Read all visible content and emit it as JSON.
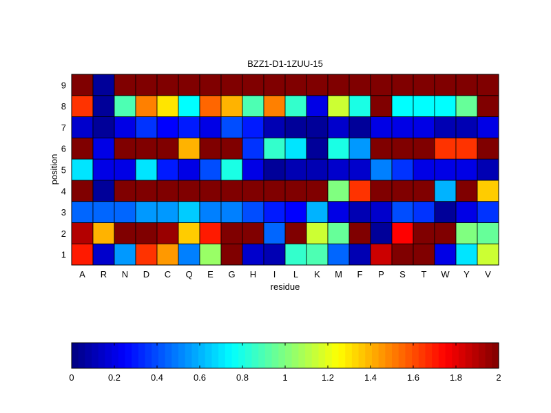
{
  "chart_data": {
    "type": "heatmap",
    "title": "BZZ1-D1-1ZUU-15",
    "xlabel": "residue",
    "ylabel": "position",
    "x_categories": [
      "A",
      "R",
      "N",
      "D",
      "C",
      "Q",
      "E",
      "G",
      "H",
      "I",
      "L",
      "K",
      "M",
      "F",
      "P",
      "S",
      "T",
      "W",
      "Y",
      "V"
    ],
    "y_categories": [
      "1",
      "2",
      "3",
      "4",
      "5",
      "6",
      "7",
      "8",
      "9"
    ],
    "values": [
      [
        1.7,
        0.15,
        0.55,
        1.65,
        1.45,
        0.5,
        1.05,
        2.0,
        0.15,
        0.1,
        0.85,
        0.9,
        0.45,
        0.1,
        1.85,
        2.0,
        2.0,
        0.2,
        0.7,
        1.15
      ],
      [
        1.9,
        1.4,
        2.0,
        2.0,
        1.95,
        1.35,
        1.7,
        2.0,
        2.0,
        0.45,
        2.0,
        1.15,
        0.95,
        2.0,
        0.05,
        1.75,
        2.0,
        2.0,
        1.0,
        0.95
      ],
      [
        0.45,
        0.45,
        0.45,
        0.55,
        0.55,
        0.65,
        0.5,
        0.5,
        0.4,
        0.3,
        0.25,
        0.6,
        0.2,
        0.1,
        0.15,
        0.4,
        0.35,
        0.05,
        0.2,
        0.35
      ],
      [
        2.0,
        0.05,
        2.0,
        2.0,
        2.0,
        2.0,
        2.0,
        2.0,
        2.0,
        2.0,
        2.0,
        2.0,
        1.0,
        1.65,
        2.0,
        2.0,
        2.0,
        0.6,
        2.0,
        1.35
      ],
      [
        0.7,
        0.2,
        0.2,
        0.7,
        0.3,
        0.2,
        0.4,
        0.8,
        0.2,
        0.05,
        0.1,
        0.1,
        0.15,
        0.15,
        0.5,
        0.35,
        0.2,
        0.2,
        0.2,
        0.1
      ],
      [
        2.0,
        0.2,
        2.0,
        2.0,
        2.0,
        1.4,
        2.0,
        2.0,
        0.35,
        0.85,
        0.7,
        0.05,
        0.8,
        0.55,
        2.0,
        2.0,
        2.0,
        1.65,
        1.65,
        2.0
      ],
      [
        0.15,
        0.05,
        0.2,
        0.35,
        0.25,
        0.3,
        0.2,
        0.4,
        0.3,
        0.1,
        0.05,
        0.05,
        0.15,
        0.05,
        0.2,
        0.2,
        0.2,
        0.1,
        0.1,
        0.2
      ],
      [
        1.65,
        0.05,
        0.9,
        1.5,
        1.3,
        0.75,
        1.55,
        1.4,
        0.9,
        1.5,
        0.85,
        0.2,
        1.15,
        0.8,
        2.0,
        0.75,
        0.75,
        0.75,
        0.95,
        2.0
      ],
      [
        2.0,
        0.05,
        2.0,
        2.0,
        2.0,
        2.0,
        2.0,
        2.0,
        2.0,
        2.0,
        2.0,
        2.0,
        2.0,
        2.0,
        2.0,
        2.0,
        2.0,
        2.0,
        2.0,
        2.0
      ]
    ],
    "clim": [
      0,
      2
    ],
    "colormap": "jet",
    "colorbar": {
      "position": "bottom",
      "ticks": [
        0,
        0.2,
        0.4,
        0.6,
        0.8,
        1,
        1.2,
        1.4,
        1.6,
        1.8,
        2
      ],
      "tick_labels": [
        "0",
        "0.2",
        "0.4",
        "0.6",
        "0.8",
        "1",
        "1.2",
        "1.4",
        "1.6",
        "1.8",
        "2"
      ]
    },
    "grid": false,
    "legend": "none"
  }
}
